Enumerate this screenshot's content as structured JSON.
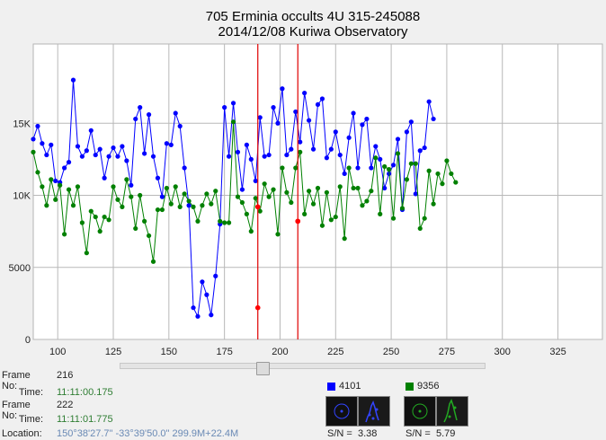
{
  "chart_data": {
    "type": "line",
    "title": "705 Erminia occults 4U 315-245088",
    "subtitle": "2014/12/08 Kuriwa Observatory",
    "xlim": [
      89,
      345
    ],
    "ylim": [
      0,
      20500
    ],
    "x_ticks": [
      100,
      125,
      150,
      175,
      200,
      225,
      250,
      275,
      300,
      325
    ],
    "y_ticks": [
      0,
      5000,
      10000,
      15000
    ],
    "y_tick_labels": [
      "0",
      "5000",
      "10K",
      "15K"
    ],
    "grid": true,
    "x_start": 89,
    "x_step": 2,
    "markers": [
      190,
      208
    ],
    "series": [
      {
        "color": "#0000ff",
        "values": [
          13900,
          14800,
          13600,
          12800,
          13500,
          11000,
          10900,
          11900,
          12300,
          18000,
          13400,
          12700,
          13100,
          14500,
          12800,
          13200,
          11200,
          12700,
          13300,
          12700,
          13400,
          12400,
          10700,
          15300,
          16100,
          12900,
          15600,
          12700,
          11200,
          9900,
          13600,
          13500,
          15700,
          14800,
          11900,
          9300,
          2200,
          1600,
          4000,
          3100,
          1700,
          4400,
          8000,
          16100,
          12700,
          16400,
          13000,
          10400,
          13500,
          12500,
          11000,
          15400,
          12700,
          12800,
          16100,
          15000,
          17400,
          12800,
          13200,
          15800,
          13700,
          17100,
          15200,
          13200,
          16300,
          16700,
          12600,
          13200,
          14400,
          12800,
          11500,
          14000,
          15700,
          11900,
          14900,
          15300,
          11900,
          13400,
          12500,
          10500,
          11500,
          12100,
          13900,
          9000,
          14400,
          15100,
          10100,
          13100,
          13300,
          16500,
          15300
        ],
        "markers_values": [
          2200,
          8200
        ]
      },
      {
        "color": "#008000",
        "values": [
          13000,
          11600,
          10600,
          9300,
          11100,
          9700,
          10700,
          7300,
          10400,
          9300,
          10600,
          8100,
          6000,
          8900,
          8500,
          7500,
          8500,
          8300,
          10600,
          9700,
          9200,
          11100,
          9900,
          7700,
          10000,
          8200,
          7200,
          5400,
          9000,
          9000,
          10500,
          9400,
          10600,
          9200,
          10100,
          9600,
          9200,
          8200,
          9300,
          10100,
          9400,
          10300,
          8200,
          8100,
          8100,
          15100,
          9900,
          9500,
          8700,
          7500,
          9800,
          8900,
          10800,
          9900,
          10400,
          7300,
          11900,
          10200,
          9500,
          11900,
          13000,
          8700,
          10300,
          9400,
          10500,
          7900,
          10200,
          8300,
          8500,
          10600,
          7000,
          11900,
          10500,
          10500,
          9300,
          9600,
          10300,
          12600,
          8700,
          12000,
          11800,
          8400,
          12900,
          9100,
          11100,
          12200,
          12200,
          7700,
          8400,
          11700,
          9400,
          11500,
          10800,
          12400,
          11500,
          10900
        ],
        "markers_values": [
          9200,
          8200
        ]
      }
    ]
  },
  "info": {
    "frame_label": "Frame No:",
    "time_label": "Time:",
    "location_label": "Location:",
    "frame1": "216",
    "time1": "11:11:00.175",
    "frame2": "222",
    "time2": "11:11:01.775",
    "location": "150°38'27.7\" -33°39'50.0\" 299.9M+22.4M"
  },
  "legend": {
    "blue_id": "4101",
    "green_id": "9356",
    "sn_label": "S/N =",
    "blue_sn": "3.38",
    "green_sn": "5.79",
    "blue_color": "#0000ff",
    "green_color": "#008000"
  }
}
